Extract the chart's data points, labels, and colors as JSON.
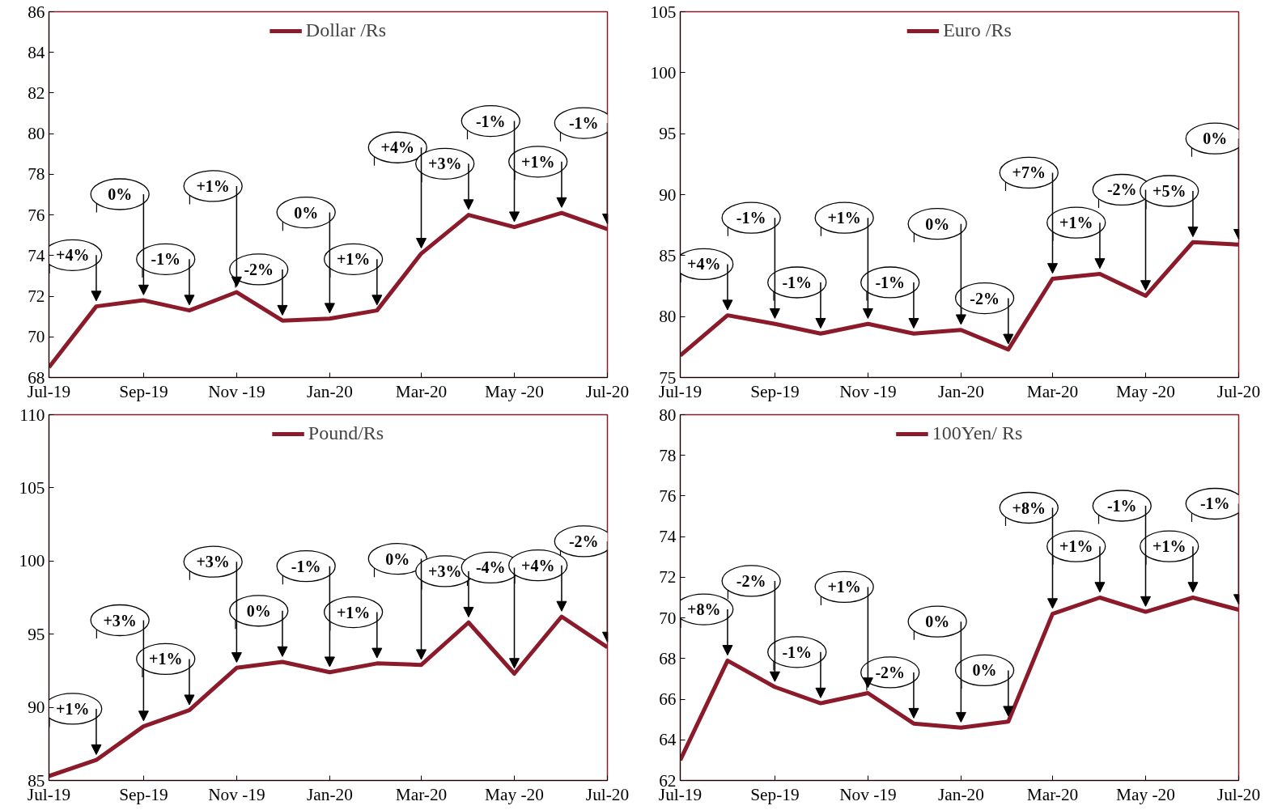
{
  "chart_data": [
    {
      "type": "line",
      "x": [
        "2019-07",
        "2019-08",
        "2019-09",
        "2019-10",
        "2019-11",
        "2019-12",
        "2020-01",
        "2020-02",
        "2020-03",
        "2020-04",
        "2020-05",
        "2020-06",
        "2020-07"
      ],
      "series": [
        {
          "name": "Dollar /Rs",
          "color": "#8b1a2a",
          "values": [
            68.5,
            71.5,
            71.8,
            71.3,
            72.2,
            70.8,
            70.9,
            71.3,
            74.1,
            76.0,
            75.4,
            76.1,
            75.3
          ]
        }
      ],
      "ylim": [
        68,
        86
      ],
      "yticks": [
        68,
        70,
        72,
        74,
        76,
        78,
        80,
        82,
        84,
        86
      ],
      "xlim": [
        "2019-07",
        "2020-07"
      ],
      "xticks": [
        {
          "value": "2019-07",
          "label": "Jul-19"
        },
        {
          "value": "2019-09",
          "label": "Sep-19"
        },
        {
          "value": "2019-11",
          "label": "Nov -19"
        },
        {
          "value": "2020-01",
          "label": "Jan-20"
        },
        {
          "value": "2020-03",
          "label": "Mar-20"
        },
        {
          "value": "2020-05",
          "label": "May -20"
        },
        {
          "value": "2020-07",
          "label": "Jul-20"
        }
      ],
      "legend": "top",
      "grid": false,
      "annotations": [
        {
          "text": "+4%",
          "x": "2019-08",
          "y": 71.5
        },
        {
          "text": "0%",
          "x": "2019-09",
          "y": 71.8
        },
        {
          "text": "-1%",
          "x": "2019-10",
          "y": 71.3
        },
        {
          "text": "+1%",
          "x": "2019-11",
          "y": 72.2
        },
        {
          "text": "-2%",
          "x": "2019-12",
          "y": 70.8
        },
        {
          "text": "0%",
          "x": "2020-01",
          "y": 70.9
        },
        {
          "text": "+1%",
          "x": "2020-02",
          "y": 71.3
        },
        {
          "text": "+4%",
          "x": "2020-03",
          "y": 74.1
        },
        {
          "text": "+3%",
          "x": "2020-04",
          "y": 76.0
        },
        {
          "text": "-1%",
          "x": "2020-05",
          "y": 75.4
        },
        {
          "text": "+1%",
          "x": "2020-06",
          "y": 76.1
        },
        {
          "text": "-1%",
          "x": "2020-07",
          "y": 75.3
        }
      ]
    },
    {
      "type": "line",
      "x": [
        "2019-07",
        "2019-08",
        "2019-09",
        "2019-10",
        "2019-11",
        "2019-12",
        "2020-01",
        "2020-02",
        "2020-03",
        "2020-04",
        "2020-05",
        "2020-06",
        "2020-07"
      ],
      "series": [
        {
          "name": "Euro /Rs",
          "color": "#8b1a2a",
          "values": [
            76.8,
            80.1,
            79.4,
            78.6,
            79.4,
            78.6,
            78.9,
            77.3,
            83.1,
            83.5,
            81.7,
            86.1,
            85.9
          ]
        }
      ],
      "ylim": [
        75,
        105
      ],
      "yticks": [
        75,
        80,
        85,
        90,
        95,
        100,
        105
      ],
      "xlim": [
        "2019-07",
        "2020-07"
      ],
      "xticks": [
        {
          "value": "2019-07",
          "label": "Jul-19"
        },
        {
          "value": "2019-09",
          "label": "Sep-19"
        },
        {
          "value": "2019-11",
          "label": "Nov -19"
        },
        {
          "value": "2020-01",
          "label": "Jan-20"
        },
        {
          "value": "2020-03",
          "label": "Mar-20"
        },
        {
          "value": "2020-05",
          "label": "May -20"
        },
        {
          "value": "2020-07",
          "label": "Jul-20"
        }
      ],
      "legend": "top",
      "grid": false,
      "annotations": [
        {
          "text": "+4%",
          "x": "2019-08",
          "y": 80.1
        },
        {
          "text": "-1%",
          "x": "2019-09",
          "y": 79.4
        },
        {
          "text": "-1%",
          "x": "2019-10",
          "y": 78.6
        },
        {
          "text": "+1%",
          "x": "2019-11",
          "y": 79.4
        },
        {
          "text": "-1%",
          "x": "2019-12",
          "y": 78.6
        },
        {
          "text": "0%",
          "x": "2020-01",
          "y": 78.9
        },
        {
          "text": "-2%",
          "x": "2020-02",
          "y": 77.3
        },
        {
          "text": "+7%",
          "x": "2020-03",
          "y": 83.1
        },
        {
          "text": "+1%",
          "x": "2020-04",
          "y": 83.5
        },
        {
          "text": "-2%",
          "x": "2020-05",
          "y": 81.7
        },
        {
          "text": "+5%",
          "x": "2020-06",
          "y": 86.1
        },
        {
          "text": "0%",
          "x": "2020-07",
          "y": 85.9
        }
      ]
    },
    {
      "type": "line",
      "x": [
        "2019-07",
        "2019-08",
        "2019-09",
        "2019-10",
        "2019-11",
        "2019-12",
        "2020-01",
        "2020-02",
        "2020-03",
        "2020-04",
        "2020-05",
        "2020-06",
        "2020-07"
      ],
      "series": [
        {
          "name": "Pound/Rs",
          "color": "#8b1a2a",
          "values": [
            85.3,
            86.4,
            88.7,
            89.8,
            92.7,
            93.1,
            92.4,
            93.0,
            92.9,
            95.8,
            92.3,
            96.2,
            94.1
          ]
        }
      ],
      "ylim": [
        85,
        110
      ],
      "yticks": [
        85,
        90,
        95,
        100,
        105,
        110
      ],
      "xlim": [
        "2019-07",
        "2020-07"
      ],
      "xticks": [
        {
          "value": "2019-07",
          "label": "Jul-19"
        },
        {
          "value": "2019-09",
          "label": "Sep-19"
        },
        {
          "value": "2019-11",
          "label": "Nov -19"
        },
        {
          "value": "2020-01",
          "label": "Jan-20"
        },
        {
          "value": "2020-03",
          "label": "Mar-20"
        },
        {
          "value": "2020-05",
          "label": "May -20"
        },
        {
          "value": "2020-07",
          "label": "Jul-20"
        }
      ],
      "legend": "top",
      "grid": false,
      "annotations": [
        {
          "text": "+1%",
          "x": "2019-08",
          "y": 86.4
        },
        {
          "text": "+3%",
          "x": "2019-09",
          "y": 88.7
        },
        {
          "text": "+1%",
          "x": "2019-10",
          "y": 89.8
        },
        {
          "text": "+3%",
          "x": "2019-11",
          "y": 92.7
        },
        {
          "text": "0%",
          "x": "2019-12",
          "y": 93.1
        },
        {
          "text": "-1%",
          "x": "2020-01",
          "y": 92.4
        },
        {
          "text": "+1%",
          "x": "2020-02",
          "y": 93.0
        },
        {
          "text": "0%",
          "x": "2020-03",
          "y": 92.9
        },
        {
          "text": "+3%",
          "x": "2020-04",
          "y": 95.8
        },
        {
          "text": "-4%",
          "x": "2020-05",
          "y": 92.3
        },
        {
          "text": "+4%",
          "x": "2020-06",
          "y": 96.2
        },
        {
          "text": "-2%",
          "x": "2020-07",
          "y": 94.1
        }
      ]
    },
    {
      "type": "line",
      "x": [
        "2019-07",
        "2019-08",
        "2019-09",
        "2019-10",
        "2019-11",
        "2019-12",
        "2020-01",
        "2020-02",
        "2020-03",
        "2020-04",
        "2020-05",
        "2020-06",
        "2020-07"
      ],
      "series": [
        {
          "name": "100Yen/ Rs",
          "color": "#8b1a2a",
          "values": [
            63.0,
            67.9,
            66.6,
            65.8,
            66.3,
            64.8,
            64.6,
            64.9,
            70.2,
            71.0,
            70.3,
            71.0,
            70.4
          ]
        }
      ],
      "ylim": [
        62,
        80
      ],
      "yticks": [
        62,
        64,
        66,
        68,
        70,
        72,
        74,
        76,
        78,
        80
      ],
      "xlim": [
        "2019-07",
        "2020-07"
      ],
      "xticks": [
        {
          "value": "2019-07",
          "label": "Jul-19"
        },
        {
          "value": "2019-09",
          "label": "Sep-19"
        },
        {
          "value": "2019-11",
          "label": "Nov -19"
        },
        {
          "value": "2020-01",
          "label": "Jan-20"
        },
        {
          "value": "2020-03",
          "label": "Mar-20"
        },
        {
          "value": "2020-05",
          "label": "May -20"
        },
        {
          "value": "2020-07",
          "label": "Jul-20"
        }
      ],
      "legend": "top",
      "grid": false,
      "annotations": [
        {
          "text": "+8%",
          "x": "2019-08",
          "y": 67.9
        },
        {
          "text": "-2%",
          "x": "2019-09",
          "y": 66.6
        },
        {
          "text": "-1%",
          "x": "2019-10",
          "y": 65.8
        },
        {
          "text": "+1%",
          "x": "2019-11",
          "y": 66.3
        },
        {
          "text": "-2%",
          "x": "2019-12",
          "y": 64.8
        },
        {
          "text": "0%",
          "x": "2020-01",
          "y": 64.6
        },
        {
          "text": "0%",
          "x": "2020-02",
          "y": 64.9
        },
        {
          "text": "+8%",
          "x": "2020-03",
          "y": 70.2
        },
        {
          "text": "+1%",
          "x": "2020-04",
          "y": 71.0
        },
        {
          "text": "-1%",
          "x": "2020-05",
          "y": 70.3
        },
        {
          "text": "+1%",
          "x": "2020-06",
          "y": 71.0
        },
        {
          "text": "-1%",
          "x": "2020-07",
          "y": 70.4
        }
      ]
    }
  ]
}
